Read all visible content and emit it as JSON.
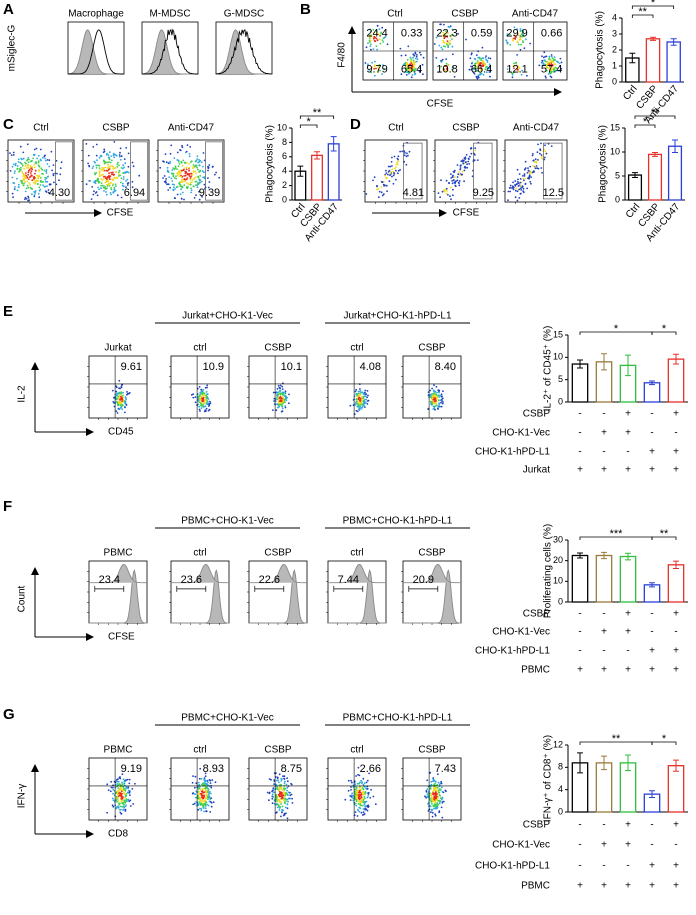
{
  "figure": {
    "panel_labels": [
      "A",
      "B",
      "C",
      "D",
      "E",
      "F",
      "G"
    ],
    "A": {
      "y_label": "mSiglec-G",
      "titles": [
        "Macrophage",
        "M-MDSC",
        "G-MDSC"
      ]
    },
    "B": {
      "y_label": "F4/80",
      "x_label": "CFSE",
      "titles": [
        "Ctrl",
        "CSBP",
        "Anti-CD47"
      ],
      "quadrants": [
        [
          "24.4",
          "0.33",
          "9.79",
          "65.4"
        ],
        [
          "22.3",
          "0.59",
          "10.8",
          "66.4"
        ],
        [
          "29.9",
          "0.66",
          "12.1",
          "57.4"
        ]
      ]
    },
    "C": {
      "x_label": "CFSE",
      "titles": [
        "Ctrl",
        "CSBP",
        "Anti-CD47"
      ],
      "gates": [
        "4.30",
        "6.94",
        "9.39"
      ]
    },
    "D": {
      "x_label": "CFSE",
      "titles": [
        "Ctrl",
        "CSBP",
        "Anti-CD47"
      ],
      "gates": [
        "4.81",
        "9.25",
        "12.5"
      ]
    },
    "E": {
      "y_label": "IL-2",
      "x_label": "CD45",
      "groups": [
        "Jurkat+CHO-K1-Vec",
        "Jurkat+CHO-K1-hPD-L1"
      ],
      "titles": [
        "Jurkat",
        "ctrl",
        "CSBP",
        "ctrl",
        "CSBP"
      ],
      "gates": [
        "9.61",
        "10.9",
        "10.1",
        "4.08",
        "8.40"
      ]
    },
    "F": {
      "y_label": "Count",
      "x_label": "CFSE",
      "groups": [
        "PBMC+CHO-K1-Vec",
        "PBMC+CHO-K1-hPD-L1"
      ],
      "titles": [
        "PBMC",
        "ctrl",
        "CSBP",
        "ctrl",
        "CSBP"
      ],
      "gates": [
        "23.4",
        "23.6",
        "22.6",
        "7.44",
        "20.9"
      ]
    },
    "G": {
      "y_label": "IFN-γ",
      "x_label": "CD8",
      "groups": [
        "PBMC+CHO-K1-Vec",
        "PBMC+CHO-K1-hPD-L1"
      ],
      "titles": [
        "PBMC",
        "ctrl",
        "CSBP",
        "ctrl",
        "CSBP"
      ],
      "gates": [
        "9.19",
        "8.93",
        "8.75",
        "2.66",
        "7.43"
      ]
    }
  },
  "chart_data": [
    {
      "type": "bar",
      "y_label": "Phagocytosis (%)",
      "categories": [
        "Ctrl",
        "CSBP",
        "Anti-CD47"
      ],
      "values": [
        1.5,
        2.7,
        2.5
      ],
      "errors": [
        0.3,
        0.1,
        0.2
      ],
      "colors": [
        "#000000",
        "#e8302a",
        "#2a3fd8"
      ],
      "ylim": [
        0,
        4
      ],
      "yticks": [
        0,
        1,
        2,
        3,
        4
      ],
      "significance": [
        "**",
        "*"
      ]
    },
    {
      "type": "bar",
      "y_label": "Phagocytosis (%)",
      "categories": [
        "Ctrl",
        "CSBP",
        "Anti-CD47"
      ],
      "values": [
        4,
        6.2,
        7.8
      ],
      "errors": [
        0.7,
        0.5,
        1.0
      ],
      "colors": [
        "#000000",
        "#e8302a",
        "#2a3fd8"
      ],
      "ylim": [
        0,
        10
      ],
      "yticks": [
        0,
        2,
        4,
        6,
        8,
        10
      ],
      "significance": [
        "*",
        "**"
      ]
    },
    {
      "type": "bar",
      "y_label": "Phagocytosis (%)",
      "categories": [
        "Ctrl",
        "CSBP",
        "Anti-CD47"
      ],
      "values": [
        5.2,
        9.5,
        11.2
      ],
      "errors": [
        0.5,
        0.4,
        1.3
      ],
      "colors": [
        "#000000",
        "#e8302a",
        "#2a3fd8"
      ],
      "ylim": [
        0,
        15
      ],
      "yticks": [
        0,
        5,
        10,
        15
      ],
      "significance": [
        "*",
        "**"
      ]
    },
    {
      "type": "bar",
      "y_label": "IL-2⁺ of CD45⁺ (%)",
      "values": [
        8.5,
        9.0,
        8.2,
        4.3,
        9.6
      ],
      "errors": [
        0.9,
        1.8,
        2.3,
        0.4,
        1.1
      ],
      "colors": [
        "#000000",
        "#9a7a3a",
        "#2fbf3a",
        "#2a3fd8",
        "#e8302a"
      ],
      "ylim": [
        0,
        15
      ],
      "yticks": [
        0,
        5,
        10,
        15
      ],
      "significance": [
        "*",
        "*"
      ],
      "conditions": [
        {
          "label": "CSBP",
          "signs": [
            "-",
            "-",
            "+",
            "-",
            "+"
          ]
        },
        {
          "label": "CHO-K1-Vec",
          "signs": [
            "-",
            "+",
            "+",
            "-",
            "-"
          ]
        },
        {
          "label": "CHO-K1-hPD-L1",
          "signs": [
            "-",
            "-",
            "-",
            "+",
            "+"
          ]
        },
        {
          "label": "Jurkat",
          "signs": [
            "+",
            "+",
            "+",
            "+",
            "+"
          ]
        }
      ]
    },
    {
      "type": "bar",
      "y_label": "Proliferating cells (%)",
      "values": [
        22.5,
        22.5,
        22,
        8.3,
        18
      ],
      "errors": [
        1.2,
        1.5,
        1.6,
        1.0,
        1.8
      ],
      "colors": [
        "#000000",
        "#9a7a3a",
        "#2fbf3a",
        "#2a3fd8",
        "#e8302a"
      ],
      "ylim": [
        0,
        30
      ],
      "yticks": [
        0,
        10,
        20,
        30
      ],
      "significance": [
        "***",
        "**"
      ],
      "conditions": [
        {
          "label": "CSBP",
          "signs": [
            "-",
            "-",
            "+",
            "-",
            "+"
          ]
        },
        {
          "label": "CHO-K1-Vec",
          "signs": [
            "-",
            "+",
            "+",
            "-",
            "-"
          ]
        },
        {
          "label": "CHO-K1-hPD-L1",
          "signs": [
            "-",
            "-",
            "-",
            "+",
            "+"
          ]
        },
        {
          "label": "PBMC",
          "signs": [
            "+",
            "+",
            "+",
            "+",
            "+"
          ]
        }
      ]
    },
    {
      "type": "bar",
      "y_label": "IFN-γ⁺ of CD8⁺ (%)",
      "values": [
        8.8,
        8.8,
        8.8,
        3.2,
        8.3
      ],
      "errors": [
        1.8,
        1.2,
        1.4,
        0.6,
        1.0
      ],
      "colors": [
        "#000000",
        "#9a7a3a",
        "#2fbf3a",
        "#2a3fd8",
        "#e8302a"
      ],
      "ylim": [
        0,
        12
      ],
      "yticks": [
        0,
        4,
        8,
        12
      ],
      "significance": [
        "**",
        "*"
      ],
      "conditions": [
        {
          "label": "CSBP",
          "signs": [
            "-",
            "-",
            "+",
            "-",
            "+"
          ]
        },
        {
          "label": "CHO-K1-Vec",
          "signs": [
            "-",
            "+",
            "+",
            "-",
            "-"
          ]
        },
        {
          "label": "CHO-K1-hPD-L1",
          "signs": [
            "-",
            "-",
            "-",
            "+",
            "+"
          ]
        },
        {
          "label": "PBMC",
          "signs": [
            "+",
            "+",
            "+",
            "+",
            "+"
          ]
        }
      ]
    }
  ]
}
